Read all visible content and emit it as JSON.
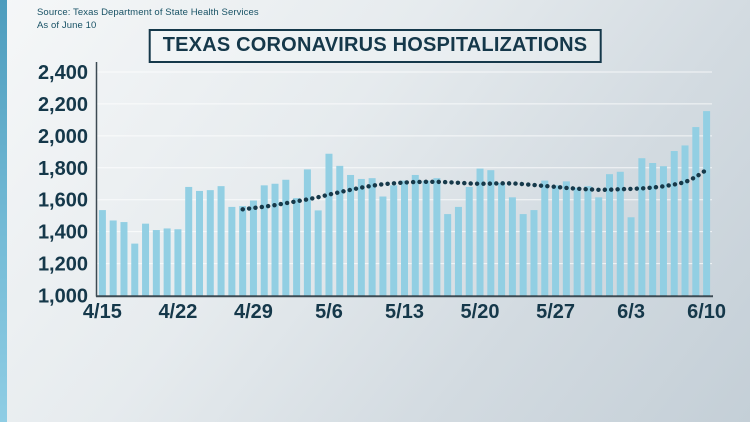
{
  "source": {
    "line1": "Source: Texas Department of State Health Services",
    "line2": "As of June 10"
  },
  "title": "TEXAS CORONAVIRUS HOSPITALIZATIONS",
  "colors": {
    "bar": "#92cfe3",
    "trend_dots": "#16394a",
    "axis_text": "#15384a",
    "source_text": "#185265",
    "gridline": "#ffffff",
    "axis_line": "#3c4a53",
    "title_border": "#15384a",
    "accent_strip": "#4d9cbd"
  },
  "chart_data": {
    "type": "bar",
    "title": "TEXAS CORONAVIRUS HOSPITALIZATIONS",
    "x": [
      "4/15",
      "4/16",
      "4/17",
      "4/18",
      "4/19",
      "4/20",
      "4/21",
      "4/22",
      "4/23",
      "4/24",
      "4/25",
      "4/26",
      "4/27",
      "4/28",
      "4/29",
      "4/30",
      "5/1",
      "5/2",
      "5/3",
      "5/4",
      "5/5",
      "5/6",
      "5/7",
      "5/8",
      "5/9",
      "5/10",
      "5/11",
      "5/12",
      "5/13",
      "5/14",
      "5/15",
      "5/16",
      "5/17",
      "5/18",
      "5/19",
      "5/20",
      "5/21",
      "5/22",
      "5/23",
      "5/24",
      "5/25",
      "5/26",
      "5/27",
      "5/28",
      "5/29",
      "5/30",
      "5/31",
      "6/1",
      "6/2",
      "6/3",
      "6/4",
      "6/5",
      "6/6",
      "6/7",
      "6/8",
      "6/9",
      "6/10"
    ],
    "series": [
      {
        "name": "Daily hospitalizations",
        "type": "bar",
        "values": [
          1535,
          1470,
          1460,
          1325,
          1450,
          1410,
          1420,
          1415,
          1680,
          1655,
          1660,
          1685,
          1555,
          1560,
          1595,
          1690,
          1700,
          1725,
          1610,
          1790,
          1533,
          1888,
          1812,
          1755,
          1730,
          1735,
          1620,
          1690,
          1720,
          1755,
          1720,
          1735,
          1510,
          1555,
          1680,
          1795,
          1785,
          1705,
          1615,
          1510,
          1535,
          1720,
          1690,
          1715,
          1675,
          1685,
          1615,
          1760,
          1775,
          1490,
          1860,
          1830,
          1810,
          1905,
          1940,
          2055,
          2155
        ]
      },
      {
        "name": "Trend (moving average)",
        "type": "dotted-line",
        "values": [
          null,
          null,
          null,
          null,
          null,
          null,
          null,
          null,
          null,
          null,
          null,
          null,
          null,
          1540,
          1548,
          1556,
          1566,
          1578,
          1590,
          1602,
          1616,
          1632,
          1648,
          1662,
          1676,
          1688,
          1697,
          1703,
          1708,
          1711,
          1712,
          1712,
          1710,
          1706,
          1702,
          1700,
          1701,
          1703,
          1702,
          1698,
          1692,
          1686,
          1680,
          1674,
          1669,
          1665,
          1662,
          1663,
          1666,
          1668,
          1671,
          1676,
          1684,
          1695,
          1710,
          1742,
          1788
        ]
      }
    ],
    "x_tick_labels": [
      "4/15",
      "4/22",
      "4/29",
      "5/6",
      "5/13",
      "5/20",
      "5/27",
      "6/3",
      "6/10"
    ],
    "x_tick_indices": [
      0,
      7,
      14,
      21,
      28,
      35,
      42,
      49,
      56
    ],
    "y_ticks": [
      2400,
      2200,
      2000,
      1800,
      1600,
      1400,
      1200,
      1000
    ],
    "y_tick_labels": [
      "2,400",
      "2,200",
      "2,000",
      "1,800",
      "1,600",
      "1,400",
      "1,200",
      "1,000"
    ],
    "ylim": [
      1000,
      2400
    ],
    "grid": true,
    "legend": "none"
  }
}
